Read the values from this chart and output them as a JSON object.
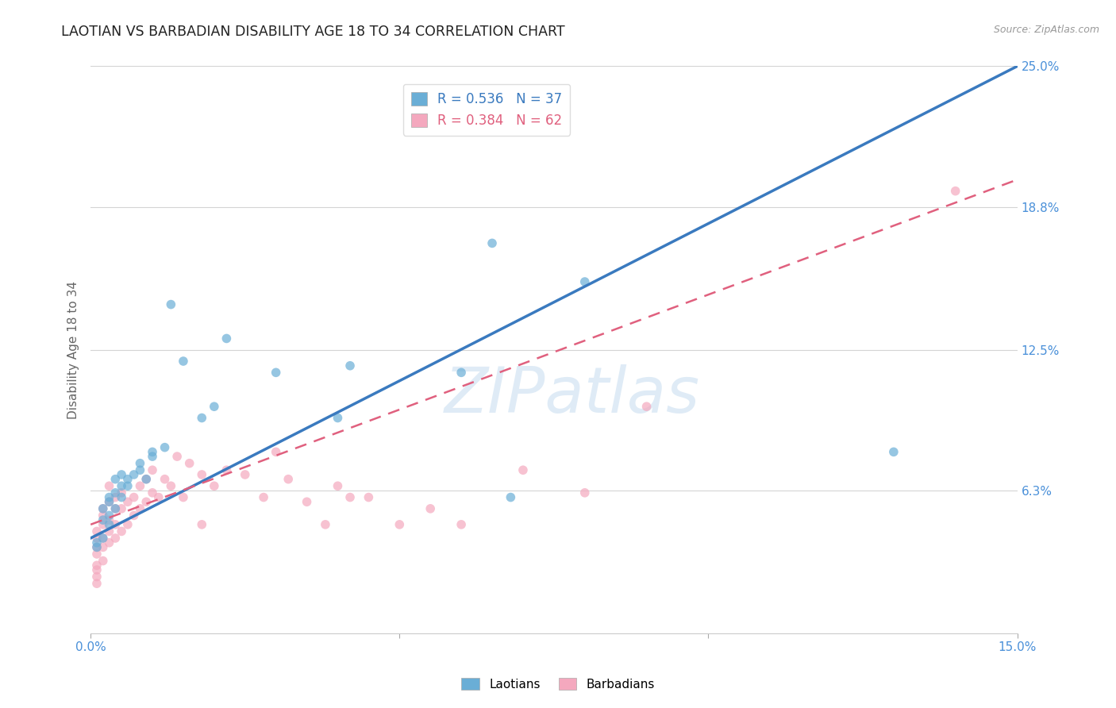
{
  "title": "LAOTIAN VS BARBADIAN DISABILITY AGE 18 TO 34 CORRELATION CHART",
  "source": "Source: ZipAtlas.com",
  "ylabel": "Disability Age 18 to 34",
  "xlim": [
    0.0,
    0.15
  ],
  "ylim": [
    0.0,
    0.25
  ],
  "xtick_positions": [
    0.0,
    0.05,
    0.1,
    0.15
  ],
  "xticklabels": [
    "0.0%",
    "",
    "",
    "15.0%"
  ],
  "ytick_positions": [
    0.0,
    0.063,
    0.125,
    0.188,
    0.25
  ],
  "ytick_labels": [
    "",
    "6.3%",
    "12.5%",
    "18.8%",
    "25.0%"
  ],
  "legend_r1": "R = 0.536",
  "legend_n1": "N = 37",
  "legend_r2": "R = 0.384",
  "legend_n2": "N = 62",
  "laotian_color": "#6aaed6",
  "barbadian_color": "#f4a8be",
  "laotian_line_color": "#3a7abf",
  "barbadian_line_color": "#e0607e",
  "watermark_text": "ZIPatlas",
  "laotian_scatter": [
    [
      0.001,
      0.04
    ],
    [
      0.001,
      0.038
    ],
    [
      0.002,
      0.042
    ],
    [
      0.002,
      0.05
    ],
    [
      0.002,
      0.055
    ],
    [
      0.003,
      0.048
    ],
    [
      0.003,
      0.052
    ],
    [
      0.003,
      0.058
    ],
    [
      0.003,
      0.06
    ],
    [
      0.004,
      0.055
    ],
    [
      0.004,
      0.062
    ],
    [
      0.004,
      0.068
    ],
    [
      0.005,
      0.06
    ],
    [
      0.005,
      0.065
    ],
    [
      0.005,
      0.07
    ],
    [
      0.006,
      0.065
    ],
    [
      0.006,
      0.068
    ],
    [
      0.007,
      0.07
    ],
    [
      0.008,
      0.072
    ],
    [
      0.008,
      0.075
    ],
    [
      0.009,
      0.068
    ],
    [
      0.01,
      0.078
    ],
    [
      0.01,
      0.08
    ],
    [
      0.012,
      0.082
    ],
    [
      0.013,
      0.145
    ],
    [
      0.015,
      0.12
    ],
    [
      0.018,
      0.095
    ],
    [
      0.02,
      0.1
    ],
    [
      0.022,
      0.13
    ],
    [
      0.03,
      0.115
    ],
    [
      0.04,
      0.095
    ],
    [
      0.042,
      0.118
    ],
    [
      0.06,
      0.115
    ],
    [
      0.065,
      0.172
    ],
    [
      0.068,
      0.06
    ],
    [
      0.08,
      0.155
    ],
    [
      0.13,
      0.08
    ]
  ],
  "barbadian_scatter": [
    [
      0.001,
      0.022
    ],
    [
      0.001,
      0.025
    ],
    [
      0.001,
      0.03
    ],
    [
      0.001,
      0.035
    ],
    [
      0.001,
      0.038
    ],
    [
      0.001,
      0.042
    ],
    [
      0.001,
      0.045
    ],
    [
      0.001,
      0.028
    ],
    [
      0.002,
      0.032
    ],
    [
      0.002,
      0.038
    ],
    [
      0.002,
      0.042
    ],
    [
      0.002,
      0.048
    ],
    [
      0.002,
      0.052
    ],
    [
      0.002,
      0.055
    ],
    [
      0.003,
      0.04
    ],
    [
      0.003,
      0.045
    ],
    [
      0.003,
      0.05
    ],
    [
      0.003,
      0.058
    ],
    [
      0.003,
      0.065
    ],
    [
      0.004,
      0.042
    ],
    [
      0.004,
      0.048
    ],
    [
      0.004,
      0.055
    ],
    [
      0.004,
      0.06
    ],
    [
      0.005,
      0.045
    ],
    [
      0.005,
      0.055
    ],
    [
      0.005,
      0.062
    ],
    [
      0.006,
      0.048
    ],
    [
      0.006,
      0.058
    ],
    [
      0.007,
      0.052
    ],
    [
      0.007,
      0.06
    ],
    [
      0.008,
      0.055
    ],
    [
      0.008,
      0.065
    ],
    [
      0.009,
      0.058
    ],
    [
      0.009,
      0.068
    ],
    [
      0.01,
      0.062
    ],
    [
      0.01,
      0.072
    ],
    [
      0.011,
      0.06
    ],
    [
      0.012,
      0.068
    ],
    [
      0.013,
      0.065
    ],
    [
      0.014,
      0.078
    ],
    [
      0.015,
      0.06
    ],
    [
      0.016,
      0.075
    ],
    [
      0.018,
      0.048
    ],
    [
      0.018,
      0.07
    ],
    [
      0.02,
      0.065
    ],
    [
      0.022,
      0.072
    ],
    [
      0.025,
      0.07
    ],
    [
      0.028,
      0.06
    ],
    [
      0.03,
      0.08
    ],
    [
      0.032,
      0.068
    ],
    [
      0.035,
      0.058
    ],
    [
      0.038,
      0.048
    ],
    [
      0.04,
      0.065
    ],
    [
      0.042,
      0.06
    ],
    [
      0.045,
      0.06
    ],
    [
      0.05,
      0.048
    ],
    [
      0.055,
      0.055
    ],
    [
      0.06,
      0.048
    ],
    [
      0.07,
      0.072
    ],
    [
      0.08,
      0.062
    ],
    [
      0.09,
      0.1
    ],
    [
      0.14,
      0.195
    ]
  ],
  "lao_line": [
    [
      0.0,
      0.042
    ],
    [
      0.15,
      0.25
    ]
  ],
  "bar_line": [
    [
      0.0,
      0.048
    ],
    [
      0.15,
      0.2
    ]
  ],
  "dot_size": 70,
  "scatter_alpha": 0.7,
  "grid_color": "#d0d0d0",
  "bg_color": "#ffffff"
}
